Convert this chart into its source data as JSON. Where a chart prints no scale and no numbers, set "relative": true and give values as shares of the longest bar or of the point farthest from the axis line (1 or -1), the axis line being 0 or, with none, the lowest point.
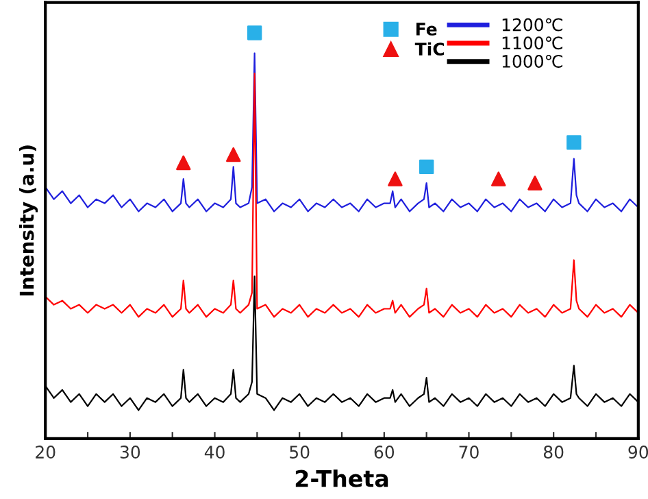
{
  "chart_data": {
    "type": "line",
    "relative": true,
    "xlabel": "2-Theta",
    "ylabel": "Intensity (a.u)",
    "x": [
      20,
      21,
      22,
      23,
      24,
      25,
      26,
      27,
      28,
      29,
      30,
      31,
      32,
      33,
      34,
      35,
      36,
      36.3,
      36.6,
      37,
      38,
      39,
      40,
      41,
      41.9,
      42.2,
      42.5,
      43,
      44,
      44.4,
      44.7,
      45,
      46,
      47,
      48,
      49,
      50,
      51,
      52,
      53,
      54,
      55,
      56,
      57,
      58,
      59,
      60,
      60.7,
      61,
      61.3,
      62,
      63,
      64,
      64.7,
      65,
      65.3,
      66,
      67,
      68,
      69,
      70,
      71,
      72,
      73,
      74,
      75,
      76,
      77,
      78,
      79,
      80,
      81,
      82,
      82.4,
      82.7,
      83,
      84,
      85,
      86,
      87,
      88,
      89,
      90
    ],
    "xlim": [
      20,
      90
    ],
    "xticks": [
      20,
      {
        "value": 25,
        "label": null
      },
      30,
      {
        "value": 35,
        "label": null
      },
      40,
      {
        "value": 45,
        "label": null
      },
      50,
      {
        "value": 55,
        "label": null
      },
      60,
      {
        "value": 65,
        "label": null
      },
      70,
      {
        "value": 75,
        "label": null
      },
      80,
      {
        "value": 85,
        "label": null
      },
      90
    ],
    "tick_labels": "x",
    "grid": false,
    "legend": "top right",
    "series": [
      {
        "name": "Fe",
        "type": "scatter",
        "marker": "square",
        "color": "#29b0e8",
        "x": [
          44.7,
          65,
          82.4
        ],
        "values": [
          1.0,
          0.67,
          0.73
        ]
      },
      {
        "name": "TiC",
        "type": "scatter",
        "marker": "triangle",
        "color": "#ee1111",
        "x": [
          36.3,
          42.2,
          61.3,
          73.5,
          77.8
        ],
        "values": [
          0.68,
          0.7,
          0.64,
          0.64,
          0.63
        ]
      },
      {
        "name": "1200℃",
        "color": "#1f1fdd",
        "values": [
          0.62,
          0.59,
          0.61,
          0.58,
          0.6,
          0.57,
          0.59,
          0.58,
          0.6,
          0.57,
          0.59,
          0.56,
          0.58,
          0.57,
          0.59,
          0.56,
          0.58,
          0.64,
          0.58,
          0.57,
          0.59,
          0.56,
          0.58,
          0.57,
          0.59,
          0.67,
          0.58,
          0.57,
          0.58,
          0.62,
          0.95,
          0.58,
          0.59,
          0.56,
          0.58,
          0.57,
          0.59,
          0.56,
          0.58,
          0.57,
          0.59,
          0.57,
          0.58,
          0.56,
          0.59,
          0.57,
          0.58,
          0.58,
          0.61,
          0.57,
          0.59,
          0.56,
          0.58,
          0.59,
          0.63,
          0.57,
          0.58,
          0.56,
          0.59,
          0.57,
          0.58,
          0.56,
          0.59,
          0.57,
          0.58,
          0.56,
          0.59,
          0.57,
          0.58,
          0.56,
          0.59,
          0.57,
          0.58,
          0.69,
          0.6,
          0.58,
          0.56,
          0.59,
          0.57,
          0.58,
          0.56,
          0.59,
          0.57
        ]
      },
      {
        "name": "1100℃",
        "color": "#ff0000",
        "values": [
          0.35,
          0.33,
          0.34,
          0.32,
          0.33,
          0.31,
          0.33,
          0.32,
          0.33,
          0.31,
          0.33,
          0.3,
          0.32,
          0.31,
          0.33,
          0.3,
          0.32,
          0.39,
          0.32,
          0.31,
          0.33,
          0.3,
          0.32,
          0.31,
          0.33,
          0.39,
          0.32,
          0.31,
          0.33,
          0.36,
          0.9,
          0.32,
          0.33,
          0.3,
          0.32,
          0.31,
          0.33,
          0.3,
          0.32,
          0.31,
          0.33,
          0.31,
          0.32,
          0.3,
          0.33,
          0.31,
          0.32,
          0.32,
          0.34,
          0.31,
          0.33,
          0.3,
          0.32,
          0.33,
          0.37,
          0.31,
          0.32,
          0.3,
          0.33,
          0.31,
          0.32,
          0.3,
          0.33,
          0.31,
          0.32,
          0.3,
          0.33,
          0.31,
          0.32,
          0.3,
          0.33,
          0.31,
          0.32,
          0.44,
          0.34,
          0.32,
          0.3,
          0.33,
          0.31,
          0.32,
          0.3,
          0.33,
          0.31
        ]
      },
      {
        "name": "1000℃",
        "color": "#000000",
        "values": [
          0.13,
          0.1,
          0.12,
          0.09,
          0.11,
          0.08,
          0.11,
          0.09,
          0.11,
          0.08,
          0.1,
          0.07,
          0.1,
          0.09,
          0.11,
          0.08,
          0.1,
          0.17,
          0.1,
          0.09,
          0.11,
          0.08,
          0.1,
          0.09,
          0.11,
          0.17,
          0.1,
          0.09,
          0.11,
          0.14,
          0.4,
          0.11,
          0.1,
          0.07,
          0.1,
          0.09,
          0.11,
          0.08,
          0.1,
          0.09,
          0.11,
          0.09,
          0.1,
          0.08,
          0.11,
          0.09,
          0.1,
          0.1,
          0.12,
          0.09,
          0.11,
          0.08,
          0.1,
          0.11,
          0.15,
          0.09,
          0.1,
          0.08,
          0.11,
          0.09,
          0.1,
          0.08,
          0.11,
          0.09,
          0.1,
          0.08,
          0.11,
          0.09,
          0.1,
          0.08,
          0.11,
          0.09,
          0.1,
          0.18,
          0.11,
          0.1,
          0.08,
          0.11,
          0.09,
          0.1,
          0.08,
          0.11,
          0.09
        ]
      }
    ]
  }
}
